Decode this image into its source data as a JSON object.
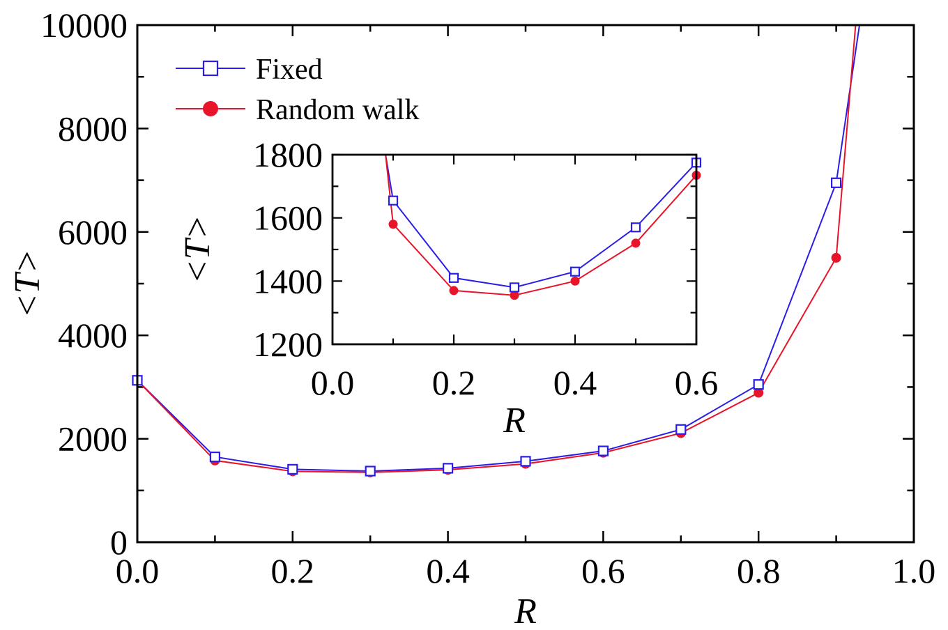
{
  "chart_data": [
    {
      "type": "line",
      "title": "",
      "xlabel": "R",
      "ylabel": "<T>",
      "xlim": [
        0.0,
        1.0
      ],
      "ylim": [
        0,
        10000
      ],
      "x_ticks": [
        0.0,
        0.2,
        0.4,
        0.6,
        0.8,
        1.0
      ],
      "x_tick_labels": [
        "0.0",
        "0.2",
        "0.4",
        "0.6",
        "0.8",
        "1.0"
      ],
      "y_ticks": [
        0,
        2000,
        4000,
        6000,
        8000,
        10000
      ],
      "y_tick_labels": [
        "0",
        "2000",
        "4000",
        "6000",
        "8000",
        "10000"
      ],
      "grid": false,
      "legend_position": "top-left",
      "series": [
        {
          "name": "Fixed",
          "color": "#2a1ee6",
          "marker": "open-square",
          "x": [
            0.0,
            0.1,
            0.2,
            0.3,
            0.4,
            0.5,
            0.6,
            0.7,
            0.8,
            0.9
          ],
          "y": [
            3130,
            1650,
            1410,
            1375,
            1430,
            1565,
            1765,
            2180,
            3050,
            6950
          ],
          "tail": {
            "x": 0.93,
            "y": 10000
          }
        },
        {
          "name": "Random walk",
          "color": "#e8142a",
          "marker": "filled-circle",
          "x": [
            0.0,
            0.1,
            0.2,
            0.3,
            0.4,
            0.5,
            0.6,
            0.7,
            0.8,
            0.9
          ],
          "y": [
            3130,
            1580,
            1370,
            1350,
            1400,
            1515,
            1730,
            2110,
            2890,
            5500
          ],
          "tail": {
            "x": 0.925,
            "y": 10000
          }
        }
      ]
    },
    {
      "type": "line",
      "title": "",
      "xlabel": "R",
      "ylabel": "<T>",
      "xlim": [
        0.0,
        0.6
      ],
      "ylim": [
        1200,
        1800
      ],
      "x_ticks": [
        0.0,
        0.2,
        0.4,
        0.6
      ],
      "x_tick_labels": [
        "0.0",
        "0.2",
        "0.4",
        "0.6"
      ],
      "y_ticks": [
        1200,
        1400,
        1600,
        1800
      ],
      "y_tick_labels": [
        "1200",
        "1400",
        "1600",
        "1800"
      ],
      "grid": false,
      "series": [
        {
          "name": "Fixed",
          "color": "#2a1ee6",
          "marker": "open-square",
          "x": [
            0.1,
            0.2,
            0.3,
            0.4,
            0.5,
            0.6
          ],
          "y": [
            1655,
            1410,
            1380,
            1430,
            1570,
            1775
          ],
          "head": {
            "x": 0.0875,
            "y": 1800
          }
        },
        {
          "name": "Random walk",
          "color": "#e8142a",
          "marker": "filled-circle",
          "x": [
            0.1,
            0.2,
            0.3,
            0.4,
            0.5,
            0.6
          ],
          "y": [
            1580,
            1370,
            1355,
            1400,
            1520,
            1735
          ],
          "head": {
            "x": 0.0875,
            "y": 1800
          }
        }
      ]
    }
  ]
}
